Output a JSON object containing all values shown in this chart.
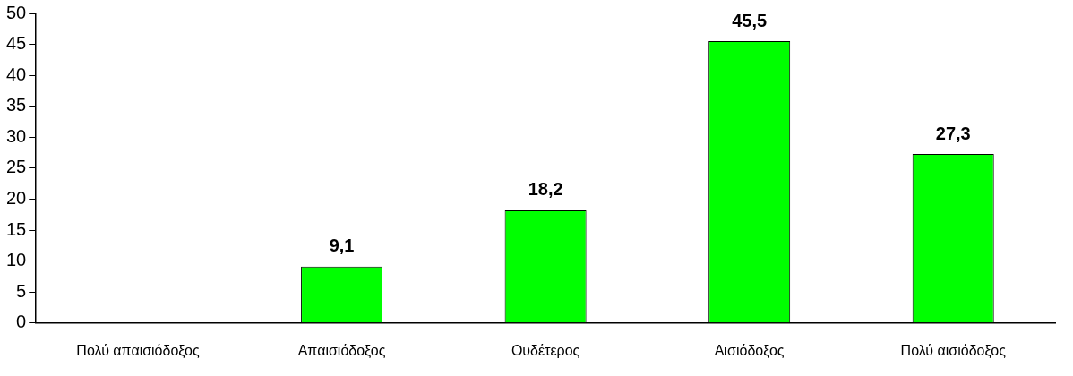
{
  "chart_data": {
    "type": "bar",
    "categories": [
      "Πολύ απαισιόδοξος",
      "Απαισιόδοξος",
      "Ουδέτερος",
      "Αισιόδοξος",
      "Πολύ αισιόδοξος"
    ],
    "values": [
      0,
      9.1,
      18.2,
      45.5,
      27.3
    ],
    "value_labels": [
      null,
      "9,1",
      "18,2",
      "45,5",
      "27,3"
    ],
    "color": "#00ff00",
    "ylim": [
      0,
      50
    ],
    "yticks": [
      0,
      5,
      10,
      15,
      20,
      25,
      30,
      35,
      40,
      45,
      50
    ],
    "grid": false,
    "legend": false
  }
}
